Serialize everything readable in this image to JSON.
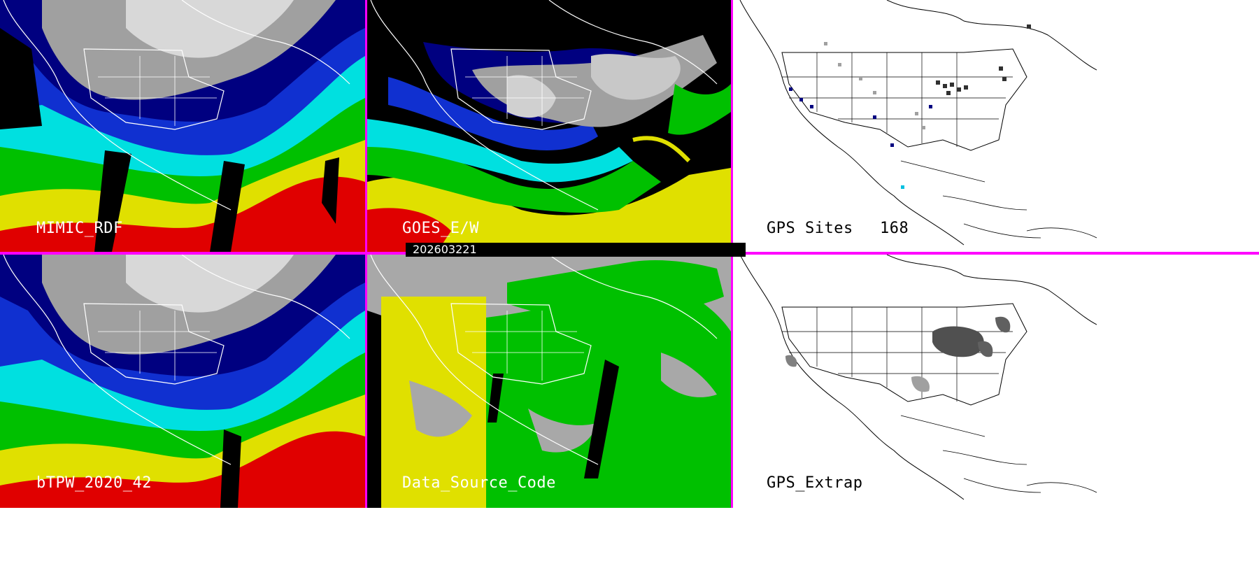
{
  "panels": {
    "top_left": {
      "label": "MIMIC_RDF"
    },
    "top_middle": {
      "label": "GOES_E/W"
    },
    "top_right": {
      "label": "GPS Sites",
      "count": "168"
    },
    "bottom_left": {
      "label": "bTPW_2020_42"
    },
    "bottom_middle": {
      "label": "Data_Source_Code"
    },
    "bottom_right": {
      "label": "GPS_Extrap"
    }
  },
  "timestamp": "202603221",
  "colors": {
    "divider": "#ff00ff",
    "tpw_scale": [
      "#ffffff",
      "#a0a0a0",
      "#000080",
      "#1030d0",
      "#00e0e0",
      "#00c000",
      "#e0e000",
      "#e00000"
    ],
    "source_codes": {
      "goes": "#00c000",
      "mimic": "#e0e000",
      "none": "#a8a8a8"
    }
  }
}
